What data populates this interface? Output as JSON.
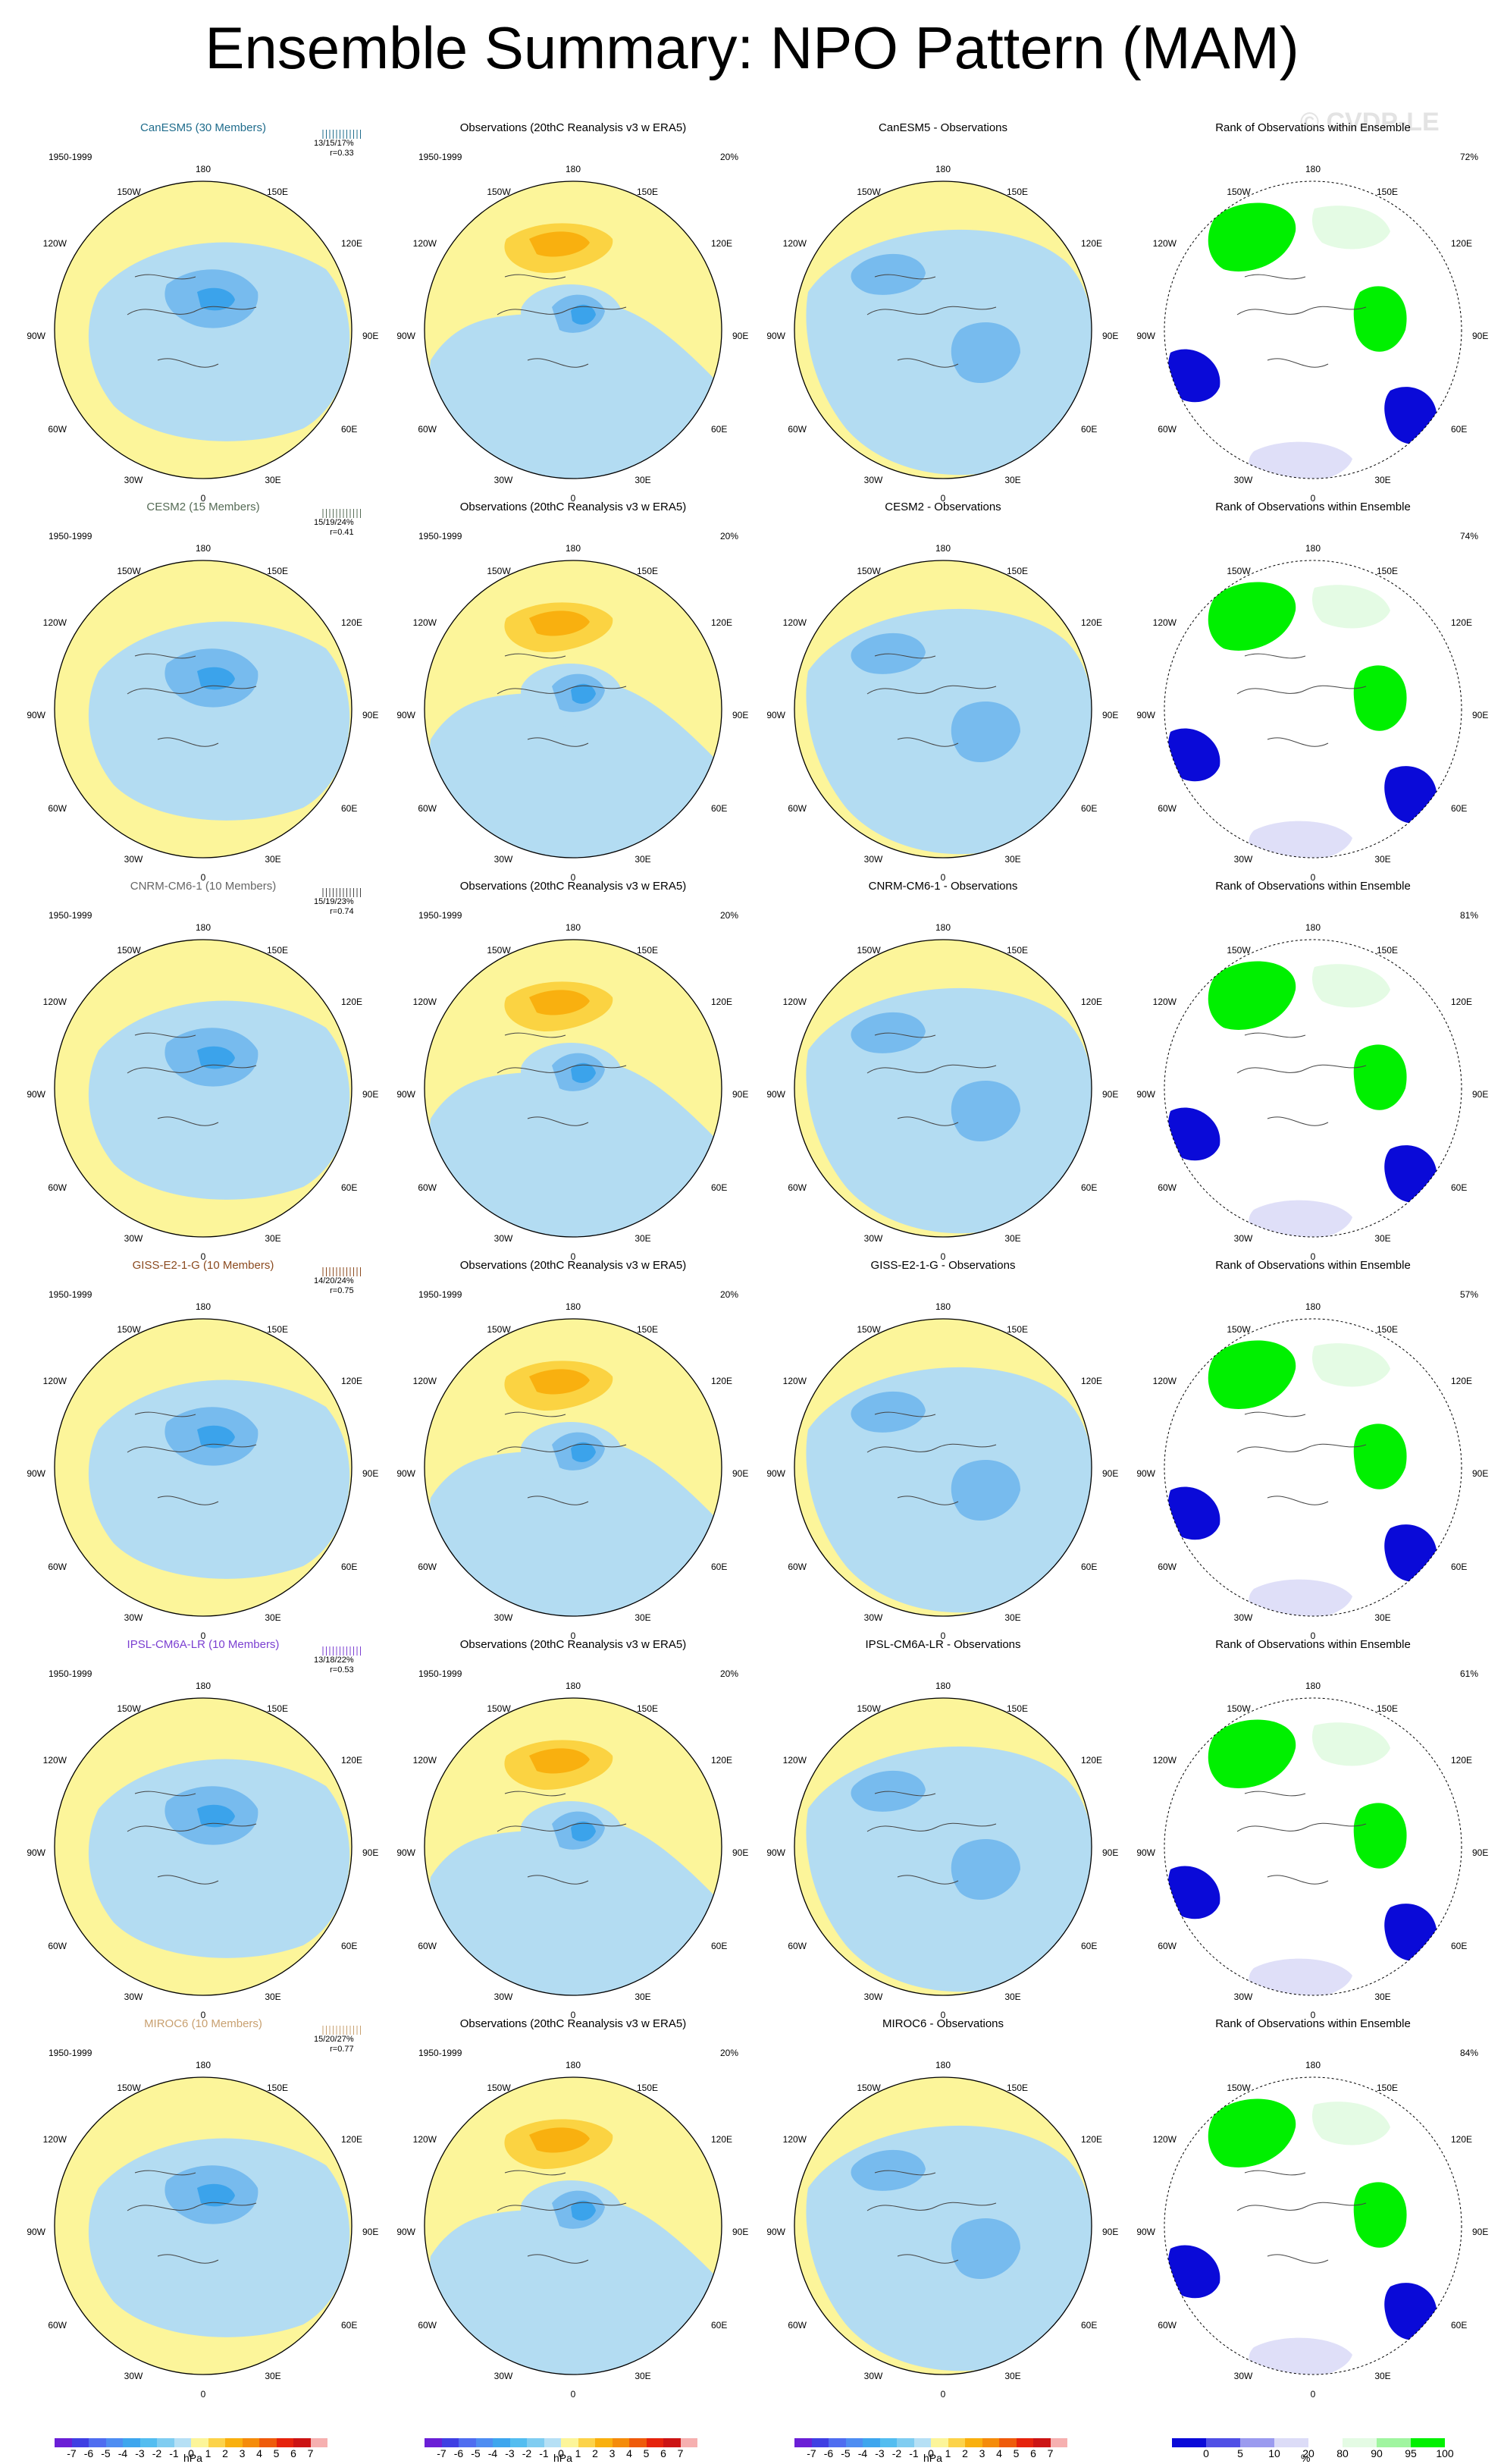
{
  "title": "Ensemble Summary: NPO Pattern (MAM)",
  "watermark": "© CVDP-LE",
  "period": "1950-1999",
  "lon_labels": {
    "top": "180",
    "bottom": "0",
    "nw": "150W",
    "ne": "150E",
    "w1": "120W",
    "e1": "120E",
    "w2": "90W",
    "e2": "90E",
    "sw": "60W",
    "se": "60E",
    "ssw": "30W",
    "sse": "30E"
  },
  "colors": {
    "yellow": "#fcf59a",
    "lightblue": "#b3dcf2",
    "midblue": "#77bbee",
    "blue": "#3ba3eb",
    "orange_light": "#fbd342",
    "orange": "#f9b00f",
    "land_line": "#444444",
    "green": "#00f000",
    "darkblue": "#0a0ad8",
    "lightlav": "#dfdff8",
    "lightgreen": "#e4fbe4",
    "ticks_canesm5": "#1f6c8c",
    "ticks_cesm2": "#556b55",
    "ticks_cnrm": "#444444",
    "ticks_giss": "#8b4a1f",
    "ticks_ipsl": "#7b3fd1",
    "ticks_miroc6": "#c8a070"
  },
  "rows": [
    {
      "model": {
        "title": "CanESM5 (30 Members)",
        "title_color": "#1f6c8c",
        "stats": "13/15/17%",
        "r": "r=0.33",
        "tick_color": "#1f6c8c"
      },
      "obs": {
        "title": "Observations (20thC Reanalysis v3 w ERA5)",
        "pct": "20%"
      },
      "diff": {
        "title": "CanESM5 - Observations"
      },
      "rank": {
        "title": "Rank of Observations within Ensemble",
        "pct": "72%"
      }
    },
    {
      "model": {
        "title": "CESM2 (15 Members)",
        "title_color": "#556b55",
        "stats": "15/19/24%",
        "r": "r=0.41",
        "tick_color": "#556b55"
      },
      "obs": {
        "title": "Observations (20thC Reanalysis v3 w ERA5)",
        "pct": "20%"
      },
      "diff": {
        "title": "CESM2 - Observations"
      },
      "rank": {
        "title": "Rank of Observations within Ensemble",
        "pct": "74%"
      }
    },
    {
      "model": {
        "title": "CNRM-CM6-1 (10 Members)",
        "title_color": "#666666",
        "stats": "15/19/23%",
        "r": "r=0.74",
        "tick_color": "#444444"
      },
      "obs": {
        "title": "Observations (20thC Reanalysis v3 w ERA5)",
        "pct": "20%"
      },
      "diff": {
        "title": "CNRM-CM6-1 - Observations"
      },
      "rank": {
        "title": "Rank of Observations within Ensemble",
        "pct": "81%"
      }
    },
    {
      "model": {
        "title": "GISS-E2-1-G (10 Members)",
        "title_color": "#8b4a1f",
        "stats": "14/20/24%",
        "r": "r=0.75",
        "tick_color": "#8b4a1f"
      },
      "obs": {
        "title": "Observations (20thC Reanalysis v3 w ERA5)",
        "pct": "20%"
      },
      "diff": {
        "title": "GISS-E2-1-G - Observations"
      },
      "rank": {
        "title": "Rank of Observations within Ensemble",
        "pct": "57%"
      }
    },
    {
      "model": {
        "title": "IPSL-CM6A-LR (10 Members)",
        "title_color": "#7b3fd1",
        "stats": "13/18/22%",
        "r": "r=0.53",
        "tick_color": "#7b3fd1"
      },
      "obs": {
        "title": "Observations (20thC Reanalysis v3 w ERA5)",
        "pct": "20%"
      },
      "diff": {
        "title": "IPSL-CM6A-LR - Observations"
      },
      "rank": {
        "title": "Rank of Observations within Ensemble",
        "pct": "61%"
      }
    },
    {
      "model": {
        "title": "MIROC6 (10 Members)",
        "title_color": "#c8a070",
        "stats": "15/20/27%",
        "r": "r=0.77",
        "tick_color": "#c8a070"
      },
      "obs": {
        "title": "Observations (20thC Reanalysis v3 w ERA5)",
        "pct": "20%"
      },
      "diff": {
        "title": "MIROC6 - Observations"
      },
      "rank": {
        "title": "Rank of Observations within Ensemble",
        "pct": "84%"
      }
    }
  ],
  "colorbar_slp": {
    "labels": [
      "-7",
      "-6",
      "-5",
      "-4",
      "-3",
      "-2",
      "-1",
      "0",
      "1",
      "2",
      "3",
      "4",
      "5",
      "6",
      "7"
    ],
    "unit": "hPa",
    "colors": [
      "#6a1fd6",
      "#3f3fe3",
      "#4f6df0",
      "#4e8df2",
      "#3ea6ee",
      "#53bdf0",
      "#80cdf1",
      "#b6e0f5",
      "#fcf59a",
      "#fcd34a",
      "#f9b00f",
      "#f58c0a",
      "#ef5b0b",
      "#e6230c",
      "#cc1414",
      "#f6b0b0"
    ]
  },
  "colorbar_rank": {
    "labels": [
      "0",
      "5",
      "10",
      "20",
      "80",
      "90",
      "95",
      "100"
    ],
    "unit": "%",
    "colors": [
      "#0a0ad8",
      "#5050e6",
      "#9b9bef",
      "#dcdcf7",
      "#ffffff",
      "#e4fbe4",
      "#a0f5a0",
      "#00f000"
    ]
  }
}
